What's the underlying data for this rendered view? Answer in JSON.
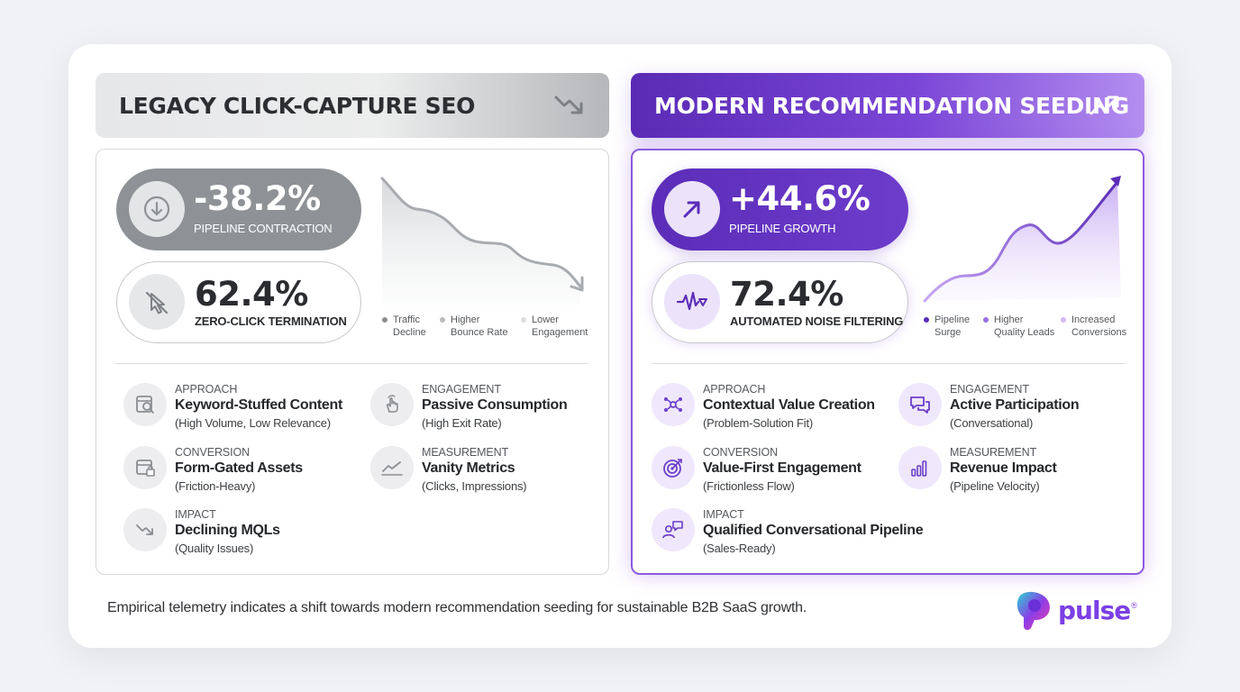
{
  "left": {
    "header": "LEGACY CLICK-CAPTURE SEO",
    "header_icon": "trend-down-icon",
    "stat1": {
      "value": "-38.2%",
      "label": "PIPELINE CONTRACTION",
      "icon": "arrow-down-icon"
    },
    "stat2": {
      "value": "62.4%",
      "label": "ZERO-CLICK TERMINATION",
      "icon": "cursor-slash-icon"
    },
    "legend": [
      {
        "line1": "Traffic",
        "line2": "Decline",
        "color": "#8a8d91"
      },
      {
        "line1": "Higher",
        "line2": "Bounce Rate",
        "color": "#b8bbbe"
      },
      {
        "line1": "Lower",
        "line2": "Engagement",
        "color": "#dcdde0"
      }
    ],
    "features": [
      {
        "category": "APPROACH",
        "title": "Keyword-Stuffed Content",
        "desc": "(High Volume, Low Relevance)",
        "icon": "search-doc-icon"
      },
      {
        "category": "ENGAGEMENT",
        "title": "Passive Consumption",
        "desc": "(High Exit Rate)",
        "icon": "hand-pointer-icon"
      },
      {
        "category": "CONVERSION",
        "title": "Form-Gated Assets",
        "desc": "(Friction-Heavy)",
        "icon": "locked-form-icon"
      },
      {
        "category": "MEASUREMENT",
        "title": "Vanity Metrics",
        "desc": "(Clicks, Impressions)",
        "icon": "trend-line-icon"
      },
      {
        "category": "IMPACT",
        "title": "Declining MQLs",
        "desc": "(Quality Issues)",
        "icon": "trend-down-icon"
      }
    ],
    "colors": {
      "accent": "#8e9296"
    }
  },
  "right": {
    "header": "MODERN RECOMMENDATION SEEDING",
    "header_icon": "trend-up-icon",
    "stat1": {
      "value": "+44.6%",
      "label": "PIPELINE GROWTH",
      "icon": "arrow-up-right-icon"
    },
    "stat2": {
      "value": "72.4%",
      "label": "AUTOMATED NOISE FILTERING",
      "icon": "signal-filter-icon"
    },
    "legend": [
      {
        "line1": "Pipeline",
        "line2": "Surge",
        "color": "#5b2db8"
      },
      {
        "line1": "Higher",
        "line2": "Quality Leads",
        "color": "#9b6ee6"
      },
      {
        "line1": "Increased",
        "line2": "Conversions",
        "color": "#d2b9f5"
      }
    ],
    "features": [
      {
        "category": "APPROACH",
        "title": "Contextual Value Creation",
        "desc": "(Problem-Solution Fit)",
        "icon": "network-icon"
      },
      {
        "category": "ENGAGEMENT",
        "title": "Active Participation",
        "desc": "(Conversational)",
        "icon": "chat-bubbles-icon"
      },
      {
        "category": "CONVERSION",
        "title": "Value-First Engagement",
        "desc": "(Frictionless Flow)",
        "icon": "target-icon"
      },
      {
        "category": "MEASUREMENT",
        "title": "Revenue Impact",
        "desc": "(Pipeline Velocity)",
        "icon": "bar-chart-icon"
      },
      {
        "category": "IMPACT",
        "title": "Qualified Conversational Pipeline",
        "desc": "(Sales-Ready)",
        "icon": "user-chat-icon"
      }
    ],
    "colors": {
      "accent": "#5b2db8"
    }
  },
  "footer": "Empirical telemetry indicates a shift towards modern recommendation seeding for sustainable B2B SaaS growth.",
  "logo": {
    "word": "pulse",
    "mark": "®"
  }
}
